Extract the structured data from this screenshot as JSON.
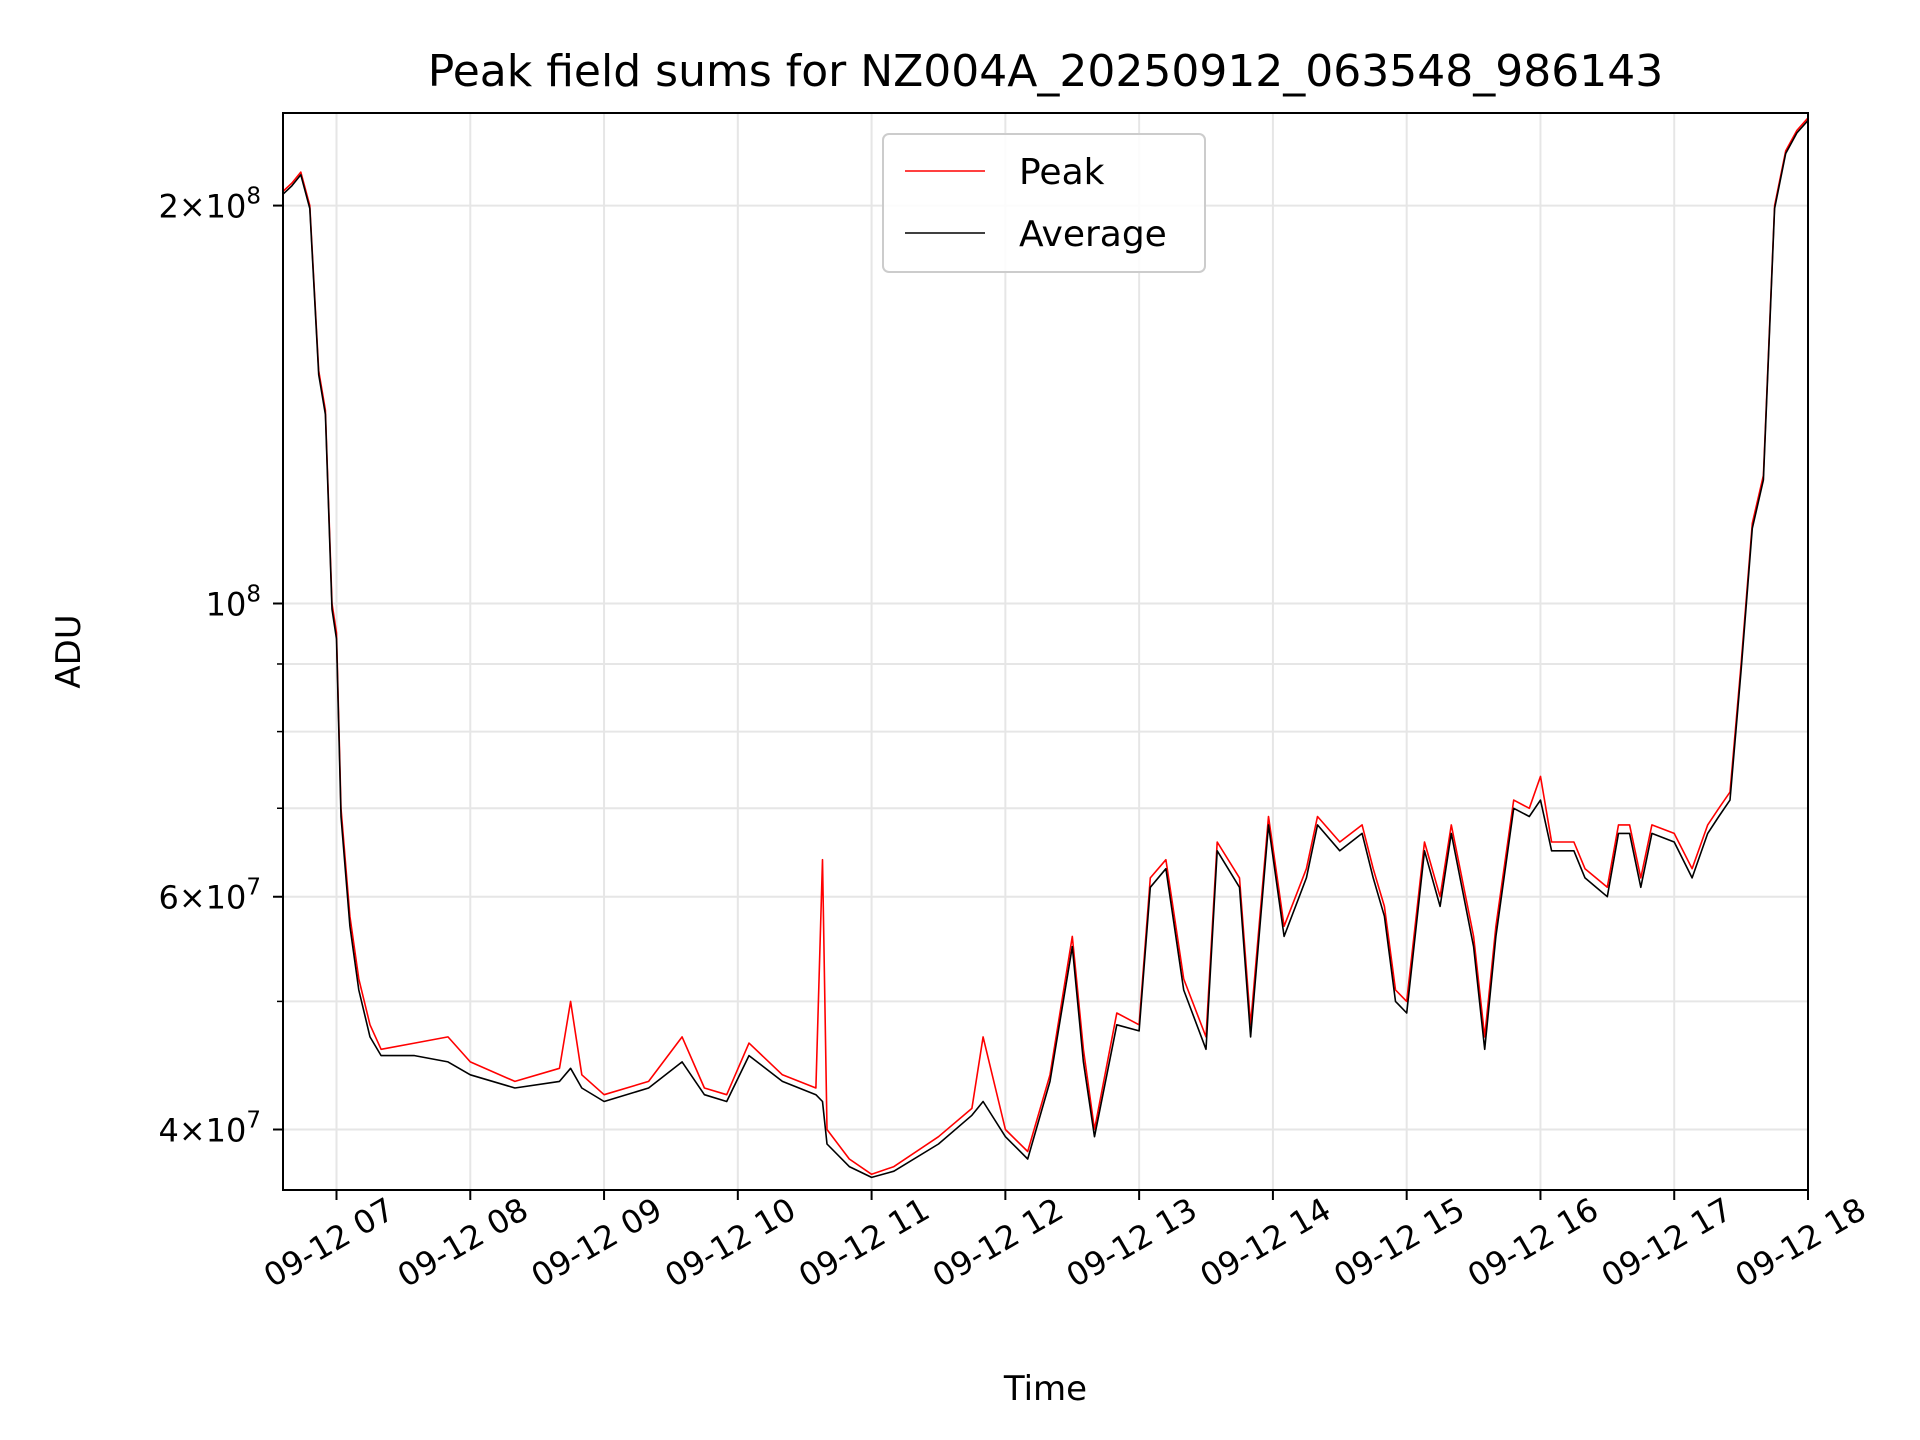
{
  "chart_data": {
    "type": "line",
    "title": "Peak field sums for NZ004A_20250912_063548_986143",
    "xlabel": "Time",
    "ylabel": "ADU",
    "yscale": "log",
    "ylim": [
      36000000,
      235000000
    ],
    "xlim": [
      "2025-09-12T06:36",
      "2025-09-12T18:00"
    ],
    "x_ticks": [
      "09-12 07",
      "09-12 08",
      "09-12 09",
      "09-12 10",
      "09-12 11",
      "09-12 12",
      "09-12 13",
      "09-12 14",
      "09-12 15",
      "09-12 16",
      "09-12 17",
      "09-12 18"
    ],
    "y_major_ticks": [
      {
        "value": 40000000,
        "label": "4×10⁷",
        "mantissa": "4",
        "exp": "7"
      },
      {
        "value": 60000000,
        "label": "6×10⁷",
        "mantissa": "6",
        "exp": "7"
      },
      {
        "value": 100000000,
        "label": "10⁸",
        "mantissa": "",
        "exp": "8"
      },
      {
        "value": 200000000,
        "label": "2×10⁸",
        "mantissa": "2",
        "exp": "8"
      }
    ],
    "y_minor_gridlines": [
      50000000,
      70000000,
      80000000,
      90000000
    ],
    "grid": true,
    "legend_position": "top-center",
    "series": [
      {
        "name": "Peak",
        "color": "#ff0000",
        "points": [
          [
            "2025-09-12T06:36",
            205000000
          ],
          [
            "2025-09-12T06:40",
            208000000
          ],
          [
            "2025-09-12T06:44",
            212000000
          ],
          [
            "2025-09-12T06:48",
            200000000
          ],
          [
            "2025-09-12T06:52",
            150000000
          ],
          [
            "2025-09-12T06:55",
            140000000
          ],
          [
            "2025-09-12T06:58",
            100000000
          ],
          [
            "2025-09-12T07:00",
            95000000
          ],
          [
            "2025-09-12T07:02",
            70000000
          ],
          [
            "2025-09-12T07:06",
            58000000
          ],
          [
            "2025-09-12T07:10",
            52000000
          ],
          [
            "2025-09-12T07:15",
            48000000
          ],
          [
            "2025-09-12T07:20",
            46000000
          ],
          [
            "2025-09-12T07:35",
            46500000
          ],
          [
            "2025-09-12T07:50",
            47000000
          ],
          [
            "2025-09-12T08:00",
            45000000
          ],
          [
            "2025-09-12T08:20",
            43500000
          ],
          [
            "2025-09-12T08:40",
            44500000
          ],
          [
            "2025-09-12T08:45",
            50000000
          ],
          [
            "2025-09-12T08:50",
            44000000
          ],
          [
            "2025-09-12T09:00",
            42500000
          ],
          [
            "2025-09-12T09:20",
            43500000
          ],
          [
            "2025-09-12T09:35",
            47000000
          ],
          [
            "2025-09-12T09:45",
            43000000
          ],
          [
            "2025-09-12T09:55",
            42500000
          ],
          [
            "2025-09-12T10:05",
            46500000
          ],
          [
            "2025-09-12T10:20",
            44000000
          ],
          [
            "2025-09-12T10:35",
            43000000
          ],
          [
            "2025-09-12T10:38",
            64000000
          ],
          [
            "2025-09-12T10:40",
            40000000
          ],
          [
            "2025-09-12T10:50",
            38000000
          ],
          [
            "2025-09-12T11:00",
            37000000
          ],
          [
            "2025-09-12T11:10",
            37500000
          ],
          [
            "2025-09-12T11:30",
            39500000
          ],
          [
            "2025-09-12T11:45",
            41500000
          ],
          [
            "2025-09-12T11:50",
            47000000
          ],
          [
            "2025-09-12T12:00",
            40000000
          ],
          [
            "2025-09-12T12:10",
            38500000
          ],
          [
            "2025-09-12T12:20",
            44000000
          ],
          [
            "2025-09-12T12:30",
            56000000
          ],
          [
            "2025-09-12T12:35",
            46000000
          ],
          [
            "2025-09-12T12:40",
            40000000
          ],
          [
            "2025-09-12T12:50",
            49000000
          ],
          [
            "2025-09-12T13:00",
            48000000
          ],
          [
            "2025-09-12T13:05",
            62000000
          ],
          [
            "2025-09-12T13:12",
            64000000
          ],
          [
            "2025-09-12T13:20",
            52000000
          ],
          [
            "2025-09-12T13:30",
            47000000
          ],
          [
            "2025-09-12T13:35",
            66000000
          ],
          [
            "2025-09-12T13:45",
            62000000
          ],
          [
            "2025-09-12T13:50",
            48000000
          ],
          [
            "2025-09-12T13:58",
            69000000
          ],
          [
            "2025-09-12T14:05",
            57000000
          ],
          [
            "2025-09-12T14:15",
            63000000
          ],
          [
            "2025-09-12T14:20",
            69000000
          ],
          [
            "2025-09-12T14:30",
            66000000
          ],
          [
            "2025-09-12T14:40",
            68000000
          ],
          [
            "2025-09-12T14:45",
            63000000
          ],
          [
            "2025-09-12T14:50",
            59000000
          ],
          [
            "2025-09-12T14:55",
            51000000
          ],
          [
            "2025-09-12T15:00",
            50000000
          ],
          [
            "2025-09-12T15:08",
            66000000
          ],
          [
            "2025-09-12T15:15",
            60000000
          ],
          [
            "2025-09-12T15:20",
            68000000
          ],
          [
            "2025-09-12T15:30",
            56000000
          ],
          [
            "2025-09-12T15:35",
            47000000
          ],
          [
            "2025-09-12T15:40",
            57000000
          ],
          [
            "2025-09-12T15:48",
            71000000
          ],
          [
            "2025-09-12T15:55",
            70000000
          ],
          [
            "2025-09-12T16:00",
            74000000
          ],
          [
            "2025-09-12T16:05",
            66000000
          ],
          [
            "2025-09-12T16:15",
            66000000
          ],
          [
            "2025-09-12T16:20",
            63000000
          ],
          [
            "2025-09-12T16:30",
            61000000
          ],
          [
            "2025-09-12T16:35",
            68000000
          ],
          [
            "2025-09-12T16:40",
            68000000
          ],
          [
            "2025-09-12T16:45",
            62000000
          ],
          [
            "2025-09-12T16:50",
            68000000
          ],
          [
            "2025-09-12T17:00",
            67000000
          ],
          [
            "2025-09-12T17:08",
            63000000
          ],
          [
            "2025-09-12T17:15",
            68000000
          ],
          [
            "2025-09-12T17:20",
            70000000
          ],
          [
            "2025-09-12T17:25",
            72000000
          ],
          [
            "2025-09-12T17:30",
            90000000
          ],
          [
            "2025-09-12T17:35",
            115000000
          ],
          [
            "2025-09-12T17:40",
            125000000
          ],
          [
            "2025-09-12T17:45",
            200000000
          ],
          [
            "2025-09-12T17:50",
            220000000
          ],
          [
            "2025-09-12T17:55",
            228000000
          ],
          [
            "2025-09-12T18:00",
            233000000
          ]
        ]
      },
      {
        "name": "Average",
        "color": "#000000",
        "points": [
          [
            "2025-09-12T06:36",
            204000000
          ],
          [
            "2025-09-12T06:40",
            207000000
          ],
          [
            "2025-09-12T06:44",
            211000000
          ],
          [
            "2025-09-12T06:48",
            199000000
          ],
          [
            "2025-09-12T06:52",
            149000000
          ],
          [
            "2025-09-12T06:55",
            139000000
          ],
          [
            "2025-09-12T06:58",
            99000000
          ],
          [
            "2025-09-12T07:00",
            94000000
          ],
          [
            "2025-09-12T07:02",
            69000000
          ],
          [
            "2025-09-12T07:06",
            57000000
          ],
          [
            "2025-09-12T07:10",
            51000000
          ],
          [
            "2025-09-12T07:15",
            47000000
          ],
          [
            "2025-09-12T07:20",
            45500000
          ],
          [
            "2025-09-12T07:35",
            45500000
          ],
          [
            "2025-09-12T07:50",
            45000000
          ],
          [
            "2025-09-12T08:00",
            44000000
          ],
          [
            "2025-09-12T08:20",
            43000000
          ],
          [
            "2025-09-12T08:40",
            43500000
          ],
          [
            "2025-09-12T08:45",
            44500000
          ],
          [
            "2025-09-12T08:50",
            43000000
          ],
          [
            "2025-09-12T09:00",
            42000000
          ],
          [
            "2025-09-12T09:20",
            43000000
          ],
          [
            "2025-09-12T09:35",
            45000000
          ],
          [
            "2025-09-12T09:45",
            42500000
          ],
          [
            "2025-09-12T09:55",
            42000000
          ],
          [
            "2025-09-12T10:05",
            45500000
          ],
          [
            "2025-09-12T10:20",
            43500000
          ],
          [
            "2025-09-12T10:35",
            42500000
          ],
          [
            "2025-09-12T10:38",
            42000000
          ],
          [
            "2025-09-12T10:40",
            39000000
          ],
          [
            "2025-09-12T10:50",
            37500000
          ],
          [
            "2025-09-12T11:00",
            36800000
          ],
          [
            "2025-09-12T11:10",
            37200000
          ],
          [
            "2025-09-12T11:30",
            39000000
          ],
          [
            "2025-09-12T11:45",
            41000000
          ],
          [
            "2025-09-12T11:50",
            42000000
          ],
          [
            "2025-09-12T12:00",
            39500000
          ],
          [
            "2025-09-12T12:10",
            38000000
          ],
          [
            "2025-09-12T12:20",
            43500000
          ],
          [
            "2025-09-12T12:30",
            55000000
          ],
          [
            "2025-09-12T12:35",
            45000000
          ],
          [
            "2025-09-12T12:40",
            39500000
          ],
          [
            "2025-09-12T12:50",
            48000000
          ],
          [
            "2025-09-12T13:00",
            47500000
          ],
          [
            "2025-09-12T13:05",
            61000000
          ],
          [
            "2025-09-12T13:12",
            63000000
          ],
          [
            "2025-09-12T13:20",
            51000000
          ],
          [
            "2025-09-12T13:30",
            46000000
          ],
          [
            "2025-09-12T13:35",
            65000000
          ],
          [
            "2025-09-12T13:45",
            61000000
          ],
          [
            "2025-09-12T13:50",
            47000000
          ],
          [
            "2025-09-12T13:58",
            68000000
          ],
          [
            "2025-09-12T14:05",
            56000000
          ],
          [
            "2025-09-12T14:15",
            62000000
          ],
          [
            "2025-09-12T14:20",
            68000000
          ],
          [
            "2025-09-12T14:30",
            65000000
          ],
          [
            "2025-09-12T14:40",
            67000000
          ],
          [
            "2025-09-12T14:45",
            62000000
          ],
          [
            "2025-09-12T14:50",
            58000000
          ],
          [
            "2025-09-12T14:55",
            50000000
          ],
          [
            "2025-09-12T15:00",
            49000000
          ],
          [
            "2025-09-12T15:08",
            65000000
          ],
          [
            "2025-09-12T15:15",
            59000000
          ],
          [
            "2025-09-12T15:20",
            67000000
          ],
          [
            "2025-09-12T15:30",
            55000000
          ],
          [
            "2025-09-12T15:35",
            46000000
          ],
          [
            "2025-09-12T15:40",
            56000000
          ],
          [
            "2025-09-12T15:48",
            70000000
          ],
          [
            "2025-09-12T15:55",
            69000000
          ],
          [
            "2025-09-12T16:00",
            71000000
          ],
          [
            "2025-09-12T16:05",
            65000000
          ],
          [
            "2025-09-12T16:15",
            65000000
          ],
          [
            "2025-09-12T16:20",
            62000000
          ],
          [
            "2025-09-12T16:30",
            60000000
          ],
          [
            "2025-09-12T16:35",
            67000000
          ],
          [
            "2025-09-12T16:40",
            67000000
          ],
          [
            "2025-09-12T16:45",
            61000000
          ],
          [
            "2025-09-12T16:50",
            67000000
          ],
          [
            "2025-09-12T17:00",
            66000000
          ],
          [
            "2025-09-12T17:08",
            62000000
          ],
          [
            "2025-09-12T17:15",
            67000000
          ],
          [
            "2025-09-12T17:20",
            69000000
          ],
          [
            "2025-09-12T17:25",
            71000000
          ],
          [
            "2025-09-12T17:30",
            89000000
          ],
          [
            "2025-09-12T17:35",
            114000000
          ],
          [
            "2025-09-12T17:40",
            124000000
          ],
          [
            "2025-09-12T17:45",
            199000000
          ],
          [
            "2025-09-12T17:50",
            219000000
          ],
          [
            "2025-09-12T17:55",
            227000000
          ],
          [
            "2025-09-12T18:00",
            232000000
          ]
        ]
      }
    ]
  }
}
